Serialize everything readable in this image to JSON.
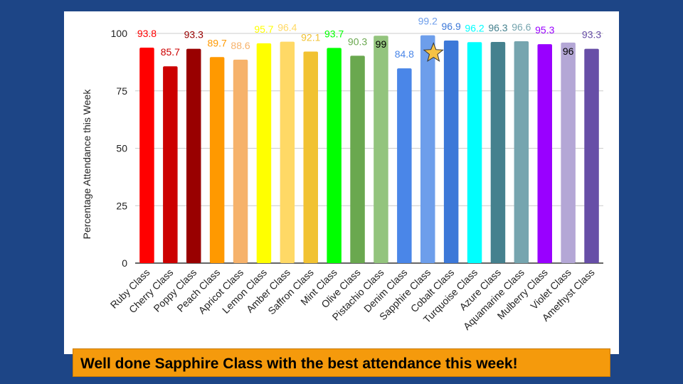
{
  "banner": {
    "text": "Well done Sapphire Class with the best attendance this week!"
  },
  "chart_data": {
    "type": "bar",
    "title": "",
    "xlabel": "",
    "ylabel": "Percentage Attendance this Week",
    "ylim": [
      0,
      100
    ],
    "yticks": [
      0,
      25,
      50,
      75,
      100
    ],
    "grid": true,
    "legend": "none",
    "highlight": {
      "category": "Sapphire Class",
      "marker": "star-icon",
      "marker_color": "#f6c244"
    },
    "categories": [
      "Ruby Class",
      "Cherry Class",
      "Poppy Class",
      "Peach Class",
      "Apricot Class",
      "Lemon Class",
      "Amber Class",
      "Saffron Class",
      "Mint Class",
      "Olive Class",
      "Pistachio Class",
      "Denim Class",
      "Sapphire Class",
      "Cobalt Class",
      "Turquoise Class",
      "Azure Class",
      "Aquamarine Class",
      "Mulberry Class",
      "Violet Class",
      "Amethyst Class"
    ],
    "values": [
      93.8,
      85.7,
      93.3,
      89.7,
      88.6,
      95.7,
      96.4,
      92.1,
      93.7,
      90.3,
      99,
      84.8,
      99.2,
      96.9,
      96.2,
      96.3,
      96.6,
      95.3,
      96,
      93.3
    ],
    "data_labels": [
      "93.8",
      "85.7",
      "93.3",
      "89.7",
      "88.6",
      "95.7",
      "96.4",
      "92.1",
      "93.7",
      "90.3",
      "99",
      "84.8",
      "99.2",
      "96.9",
      "96.2",
      "96.3",
      "96.6",
      "95.3",
      "96",
      "93.3"
    ],
    "bar_colors": [
      "#ff0000",
      "#cc0000",
      "#990000",
      "#ff9900",
      "#f6b26b",
      "#ffff00",
      "#ffd966",
      "#f1c232",
      "#00ff00",
      "#6aa84f",
      "#93c47d",
      "#4a86e8",
      "#6d9eeb",
      "#3c78d8",
      "#00ffff",
      "#45818e",
      "#76a5af",
      "#9900ff",
      "#b4a7d6",
      "#674ea7"
    ],
    "label_colors": [
      "#ff0000",
      "#cc0000",
      "#990000",
      "#ff9900",
      "#f6b26b",
      "#ffff00",
      "#ffd966",
      "#f1c232",
      "#00ff00",
      "#6aa84f",
      "#000000",
      "#4a86e8",
      "#6d9eeb",
      "#3c78d8",
      "#00ffff",
      "#45818e",
      "#76a5af",
      "#9900ff",
      "#000000",
      "#674ea7"
    ],
    "labels_inside": [
      "Pistachio Class",
      "Violet Class"
    ]
  }
}
